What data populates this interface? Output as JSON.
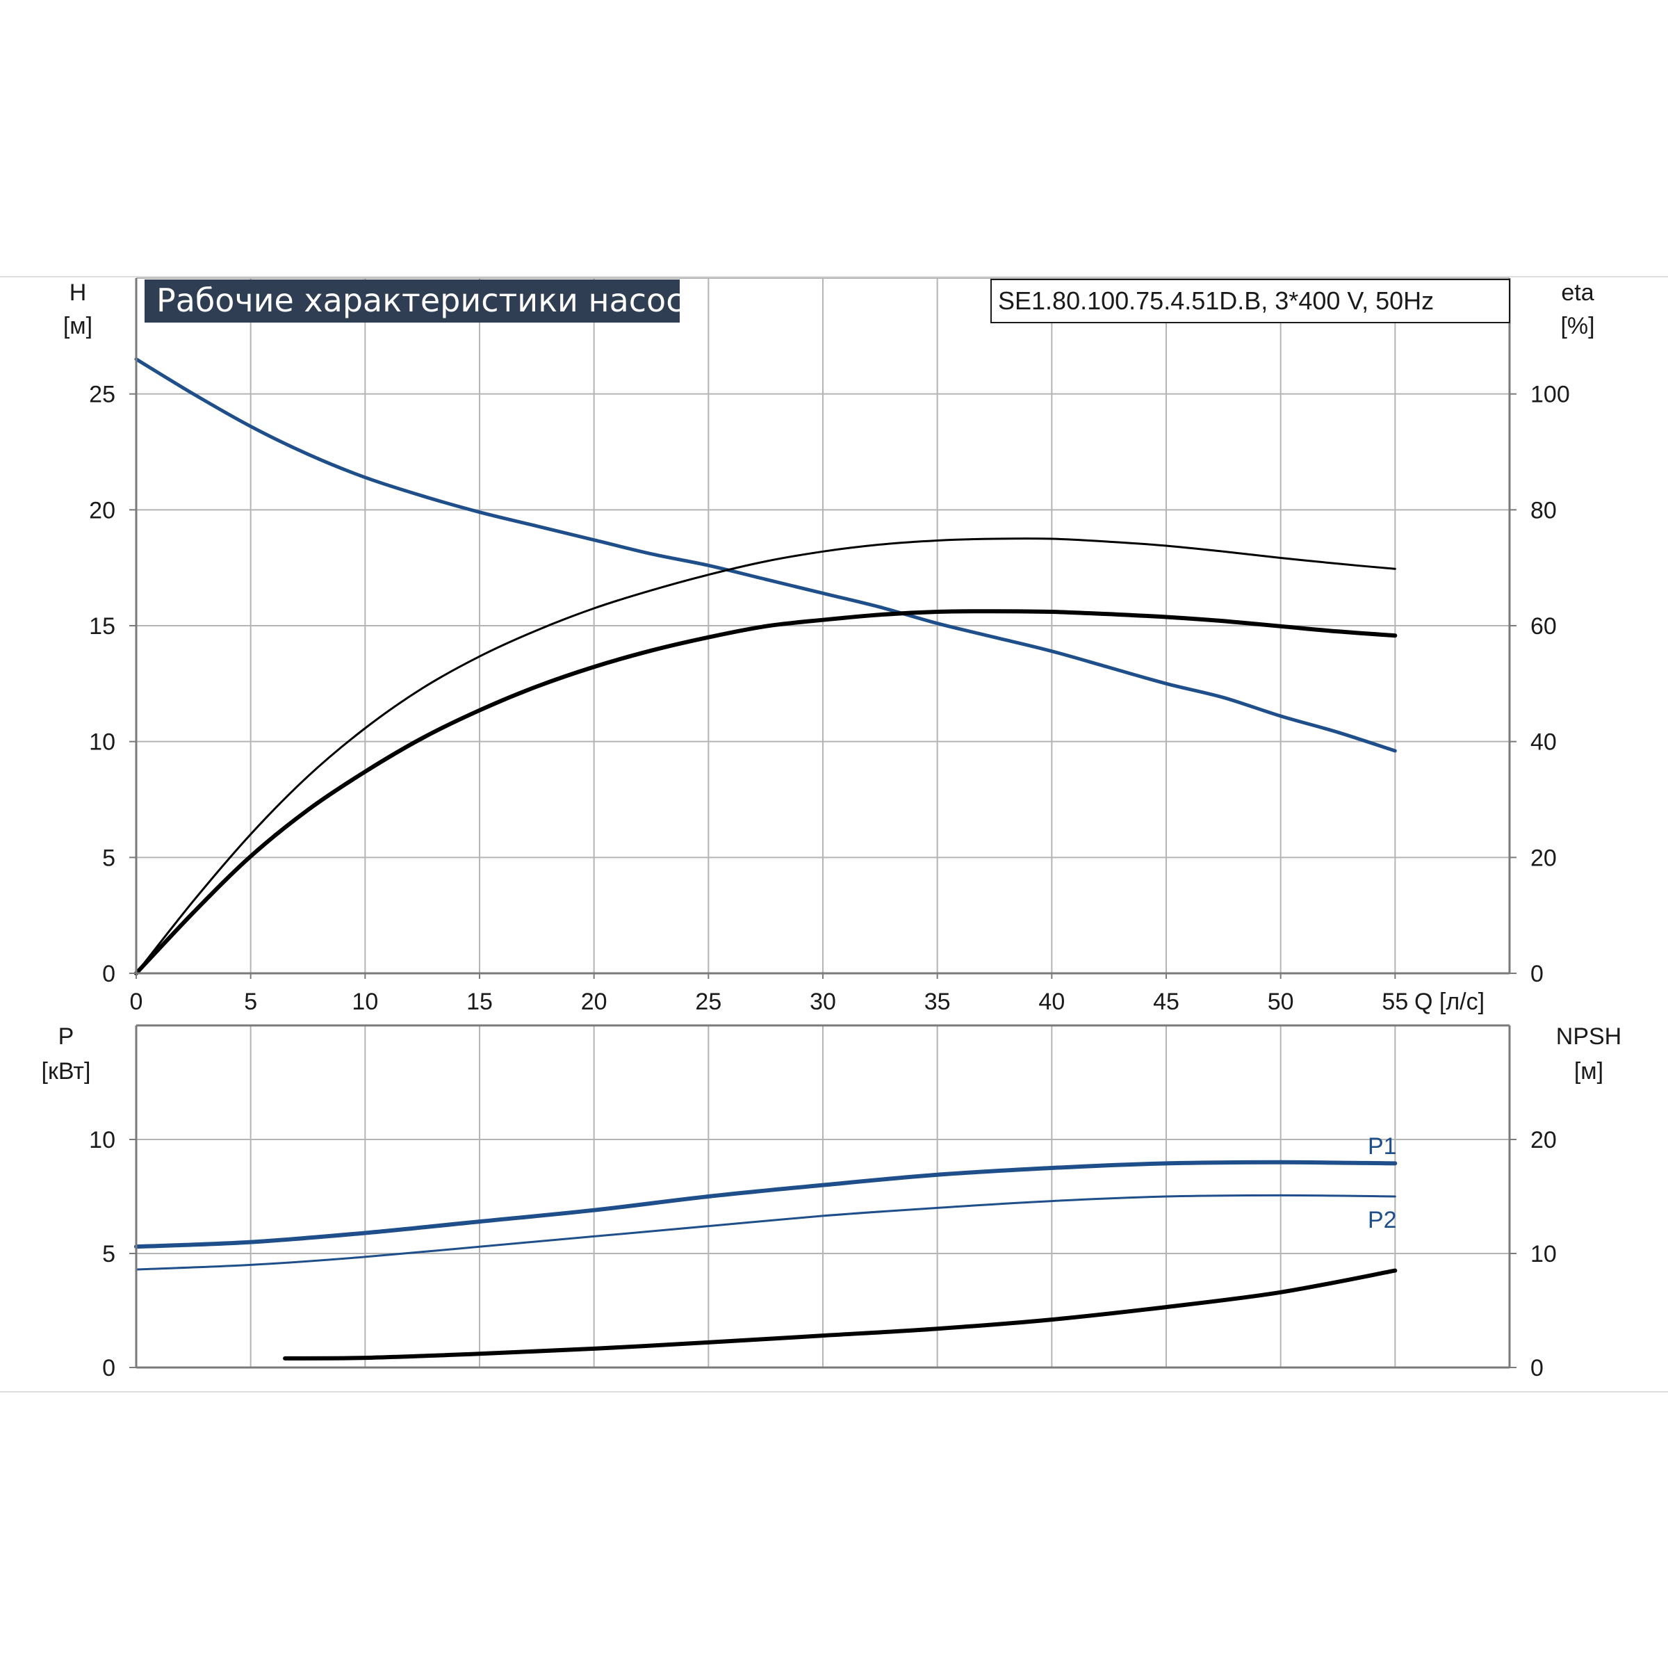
{
  "colors": {
    "grid": "#b4b4b4",
    "axis": "#7a7a7a",
    "head_curve": "#1f4f8a",
    "efficiency_curves": "#000000",
    "power_curves": "#1f4f8a",
    "npsh_curve": "#000000",
    "title_bg": "#2f3e52",
    "title_text": "#ffffff"
  },
  "chart_data": [
    {
      "type": "line",
      "title": "Рабочие характеристики насоса",
      "subtitle": "SE1.80.100.75.4.51D.B, 3*400 V, 50Hz",
      "xlabel": "Q [л/с]",
      "ylabel_left": {
        "name": "H",
        "unit": "[м]"
      },
      "ylabel_right": {
        "name": "eta",
        "unit": "[%]"
      },
      "x_ticks": [
        "0",
        "5",
        "10",
        "15",
        "20",
        "25",
        "30",
        "35",
        "40",
        "45",
        "50",
        "55"
      ],
      "y_left_ticks": [
        "0",
        "5",
        "10",
        "15",
        "20",
        "25"
      ],
      "y_right_ticks": [
        "0",
        "20",
        "40",
        "60",
        "80",
        "100"
      ],
      "xlim": [
        0,
        60
      ],
      "ylim_left": [
        0,
        30
      ],
      "ylim_right": [
        0,
        120
      ],
      "grid": true,
      "series": [
        {
          "axis": "left",
          "style": "head",
          "x": [
            0,
            2.5,
            5,
            7.5,
            10,
            12.5,
            15,
            17.5,
            20,
            22.5,
            25,
            27.5,
            30,
            32.5,
            35,
            37.5,
            40,
            42.5,
            45,
            47.5,
            50,
            52.5,
            55
          ],
          "y": [
            26.5,
            25.0,
            23.6,
            22.4,
            21.4,
            20.6,
            19.9,
            19.3,
            18.7,
            18.1,
            17.6,
            17.0,
            16.4,
            15.8,
            15.1,
            14.5,
            13.9,
            13.2,
            12.5,
            11.9,
            11.1,
            10.4,
            9.6
          ]
        },
        {
          "axis": "right",
          "style": "eta-thin",
          "x": [
            0,
            2.5,
            5,
            7.5,
            10,
            12.5,
            15,
            17.5,
            20,
            22.5,
            25,
            27.5,
            30,
            32.5,
            35,
            37.5,
            40,
            42.5,
            45,
            47.5,
            50,
            52.5,
            55
          ],
          "y": [
            0,
            12.5,
            24.0,
            34.0,
            42.3,
            49.2,
            54.7,
            59.2,
            63.0,
            66.1,
            68.8,
            71.1,
            72.8,
            74.0,
            74.7,
            75.0,
            75.0,
            74.5,
            73.8,
            72.8,
            71.7,
            70.7,
            69.8
          ]
        },
        {
          "axis": "right",
          "style": "eta-thick",
          "x": [
            0,
            2.5,
            5,
            7.5,
            10,
            12.5,
            15,
            17.5,
            20,
            22.5,
            25,
            27.5,
            30,
            32.5,
            35,
            37.5,
            40,
            42.5,
            45,
            47.5,
            50,
            52.5,
            55
          ],
          "y": [
            0,
            10.5,
            20.2,
            28.2,
            34.8,
            40.6,
            45.4,
            49.5,
            52.9,
            55.7,
            58.0,
            59.9,
            61.0,
            61.9,
            62.4,
            62.5,
            62.4,
            62.0,
            61.5,
            60.8,
            59.9,
            59.0,
            58.3
          ]
        }
      ]
    },
    {
      "type": "line",
      "xlabel": "",
      "ylabel_left": {
        "name": "P",
        "unit": "[кВт]"
      },
      "ylabel_right": {
        "name": "NPSH",
        "unit": "[м]"
      },
      "y_left_ticks": [
        "0",
        "5",
        "10"
      ],
      "y_right_ticks": [
        "0",
        "10",
        "20"
      ],
      "xlim": [
        0,
        60
      ],
      "ylim_left": [
        0,
        15
      ],
      "ylim_right": [
        0,
        30
      ],
      "grid": true,
      "series": [
        {
          "name": "P1",
          "axis": "left",
          "style": "p1",
          "x": [
            0,
            5,
            10,
            15,
            20,
            25,
            30,
            35,
            40,
            45,
            50,
            55
          ],
          "y": [
            5.3,
            5.5,
            5.9,
            6.4,
            6.9,
            7.5,
            8.0,
            8.45,
            8.75,
            8.95,
            9.0,
            8.95
          ]
        },
        {
          "name": "P2",
          "axis": "left",
          "style": "p2",
          "x": [
            0,
            5,
            10,
            15,
            20,
            25,
            30,
            35,
            40,
            45,
            50,
            55
          ],
          "y": [
            4.3,
            4.5,
            4.85,
            5.3,
            5.75,
            6.2,
            6.65,
            7.0,
            7.3,
            7.5,
            7.55,
            7.5
          ]
        },
        {
          "axis": "right",
          "style": "npsh",
          "x": [
            6.5,
            10,
            15,
            20,
            25,
            30,
            35,
            40,
            45,
            50,
            55
          ],
          "y": [
            0.8,
            0.85,
            1.2,
            1.65,
            2.2,
            2.8,
            3.4,
            4.2,
            5.3,
            6.6,
            8.5
          ]
        }
      ]
    }
  ]
}
